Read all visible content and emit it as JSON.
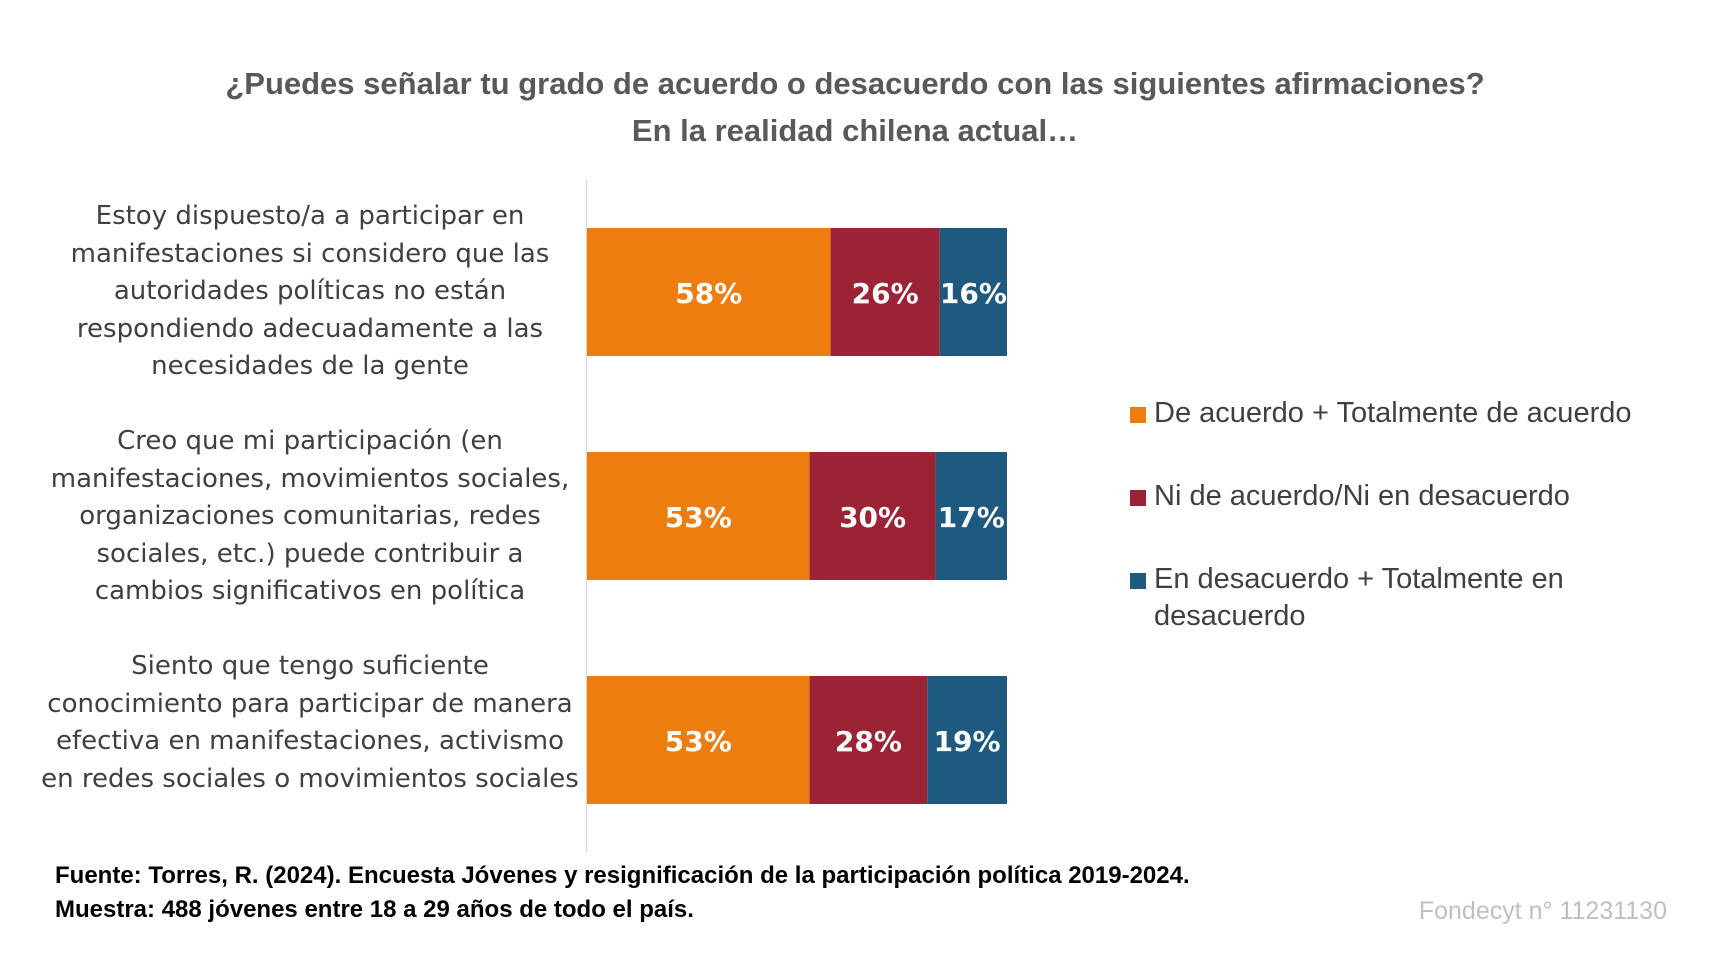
{
  "colors": {
    "agree": "#ee7d10",
    "neutral": "#9b2335",
    "disagree": "#1e5a80",
    "title": "#595959",
    "text": "#404040",
    "grant": "#bfbfbf"
  },
  "chart_data": {
    "type": "bar",
    "orientation": "horizontal",
    "stacked": true,
    "title": "¿Puedes señalar tu grado de acuerdo o desacuerdo con las siguientes afirmaciones?",
    "subtitle": "En la realidad chilena actual…",
    "categories": [
      "Estoy dispuesto/a a participar en manifestaciones si considero que las autoridades políticas no están respondiendo adecuadamente a las necesidades de la gente",
      "Creo que mi participación (en manifestaciones, movimientos sociales, organizaciones comunitarias, redes sociales, etc.) puede contribuir a cambios significativos en política",
      "Siento que tengo suficiente conocimiento para participar de manera efectiva en manifestaciones, activismo en redes sociales o movimientos sociales"
    ],
    "series": [
      {
        "name": "De acuerdo + Totalmente de acuerdo",
        "values": [
          58,
          53,
          53
        ],
        "labels": [
          "58%",
          "53%",
          "53%"
        ],
        "color": "#ee7d10"
      },
      {
        "name": "Ni de acuerdo/Ni en desacuerdo",
        "values": [
          26,
          30,
          28
        ],
        "labels": [
          "26%",
          "30%",
          "28%"
        ],
        "color": "#9b2335"
      },
      {
        "name": "En desacuerdo + Totalmente en desacuerdo",
        "values": [
          16,
          17,
          19
        ],
        "labels": [
          "16%",
          "17%",
          "19%"
        ],
        "color": "#1e5a80"
      }
    ],
    "xlim": [
      0,
      100
    ],
    "grid": false,
    "legend": "right"
  },
  "footer": {
    "source": "Fuente: Torres, R. (2024). Encuesta Jóvenes y resignificación de la participación política 2019-2024.",
    "sample": "Muestra: 488 jóvenes entre 18 a 29 años de todo el país.",
    "grant": "Fondecyt n° 11231130"
  }
}
